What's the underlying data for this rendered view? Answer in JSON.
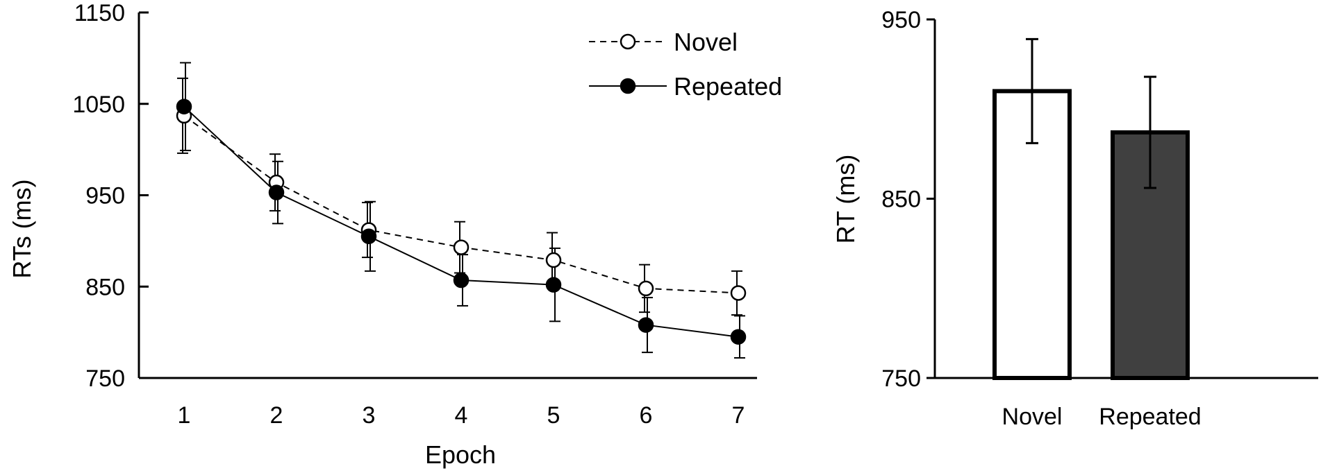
{
  "chart_data": [
    {
      "type": "line",
      "title": "",
      "xlabel": "Epoch",
      "ylabel": "RTs (ms)",
      "x": [
        1,
        2,
        3,
        4,
        5,
        6,
        7
      ],
      "ylim": [
        750,
        1150
      ],
      "yticks": [
        750,
        850,
        950,
        1050,
        1150
      ],
      "grid": false,
      "legend_position": "top-right",
      "series": [
        {
          "name": "Novel",
          "style": "dashed",
          "marker": "open-circle",
          "values": [
            1037,
            964,
            912,
            893,
            879,
            848,
            843
          ],
          "errors": [
            41,
            31,
            30,
            28,
            30,
            26,
            24
          ]
        },
        {
          "name": "Repeated",
          "style": "solid",
          "marker": "filled-circle",
          "values": [
            1047,
            953,
            905,
            857,
            852,
            808,
            795
          ],
          "errors": [
            48,
            34,
            38,
            28,
            40,
            30,
            23
          ]
        }
      ]
    },
    {
      "type": "bar",
      "title": "",
      "xlabel": "",
      "ylabel": "RT (ms)",
      "categories": [
        "Novel",
        "Repeated"
      ],
      "values": [
        910,
        887
      ],
      "errors": [
        29,
        31
      ],
      "ylim": [
        750,
        950
      ],
      "yticks": [
        750,
        850,
        950
      ],
      "grid": false,
      "colors": [
        "#ffffff",
        "#404040"
      ]
    }
  ]
}
